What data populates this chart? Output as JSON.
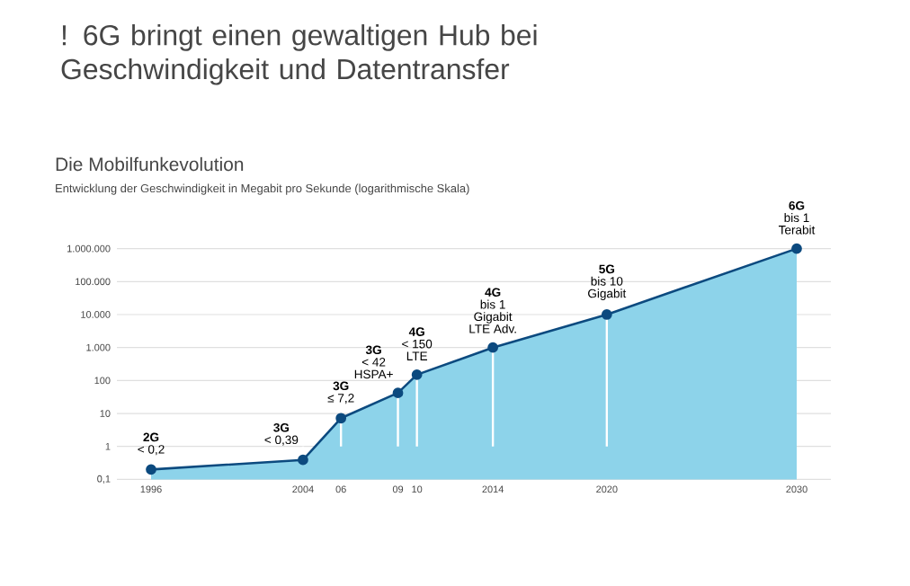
{
  "chart_data": {
    "type": "area",
    "title": "! 6G bringt einen gewaltigen Hub bei Geschwindigkeit und Datentransfer",
    "subtitle": "Die Mobilfunkevolution",
    "x": [
      1996,
      2004,
      2006,
      2009,
      2010,
      2014,
      2020,
      2030
    ],
    "series": [
      {
        "color": "#8dd3ea",
        "values": [
          0.2,
          0.39,
          7.2,
          42,
          150,
          1000,
          10000,
          1000000
        ]
      }
    ],
    "log": "y",
    "marker": "circle",
    "grid": "y",
    "xlim": [
      1994.2,
      2031.8
    ],
    "ylim": [
      0.1,
      1000000
    ],
    "xticks": [
      1996,
      2004,
      {
        "value": 2006,
        "label": "06"
      },
      {
        "value": 2009,
        "label": "09"
      },
      {
        "value": 2010,
        "label": "10"
      },
      2014,
      2020,
      2030
    ],
    "yticks": [
      {
        "value": 0.1,
        "label": "0,1"
      },
      1,
      10,
      100,
      {
        "value": 1000,
        "label": "1.000"
      },
      {
        "value": 10000,
        "label": "10.000"
      },
      {
        "value": 100000,
        "label": "100.000"
      },
      {
        "value": 1000000,
        "label": "1.000.000"
      }
    ],
    "annotations": [
      "2G",
      {
        "text": "< 0,2",
        "x": 1996,
        "y": 0.2
      },
      "3G",
      {
        "text": "< 0,39",
        "x": 2004,
        "y": 0.39
      },
      "3G",
      {
        "text": "≤ 7,2",
        "x": 2006,
        "y": 7.2
      },
      "3G",
      "< 42",
      {
        "text": "HSPA+",
        "x": 2009,
        "y": 42
      },
      "4G",
      "< 150",
      {
        "text": "LTE",
        "x": 2010,
        "y": 150
      },
      "4G",
      "bis 1",
      "Gigabit",
      {
        "text": "LTE Adv.",
        "x": 2014,
        "y": 1000
      },
      "5G",
      "bis 10",
      {
        "text": "Gigabit",
        "x": 2020,
        "y": 10000
      },
      "6G",
      "bis 1",
      {
        "text": "Terabit",
        "x": 2030,
        "y": 1000000
      },
      "Entwicklung der Geschwindigkeit in Megabit pro Sekunde (logarithmische Skala)"
    ]
  }
}
